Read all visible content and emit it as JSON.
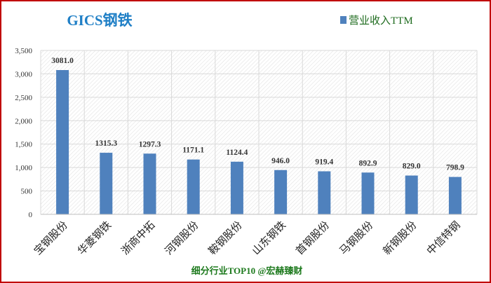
{
  "chart_data": {
    "type": "bar",
    "title": "GICS钢铁",
    "legend": [
      "营业收入TTM"
    ],
    "legend_position": "top-right",
    "categories": [
      "宝钢股份",
      "华菱钢铁",
      "浙商中拓",
      "河钢股份",
      "鞍钢股份",
      "山东钢铁",
      "首钢股份",
      "马钢股份",
      "新钢股份",
      "中信特钢"
    ],
    "values": [
      3081.0,
      1315.3,
      1297.3,
      1171.1,
      1124.4,
      946.0,
      919.4,
      892.9,
      829.0,
      798.9
    ],
    "data_labels": [
      "3081.0",
      "1315.3",
      "1297.3",
      "1171.1",
      "1124.4",
      "946.0",
      "919.4",
      "892.9",
      "829.0",
      "798.9"
    ],
    "ylim": [
      0,
      3500
    ],
    "yticks": [
      0,
      500,
      1000,
      1500,
      2000,
      2500,
      3000,
      3500
    ],
    "ytick_labels": [
      "0",
      "500",
      "1,000",
      "1,500",
      "2,000",
      "2,500",
      "3,000",
      "3,500"
    ],
    "grid": true,
    "xlabel": "",
    "ylabel": "",
    "footer": "细分行业TOP10 @宏赫臻财"
  },
  "colors": {
    "bar": "#4f81bd",
    "title": "#1f7fc6",
    "legend_text": "#1e6b1e",
    "footer": "#1e7a1e",
    "border": "#c00000"
  }
}
